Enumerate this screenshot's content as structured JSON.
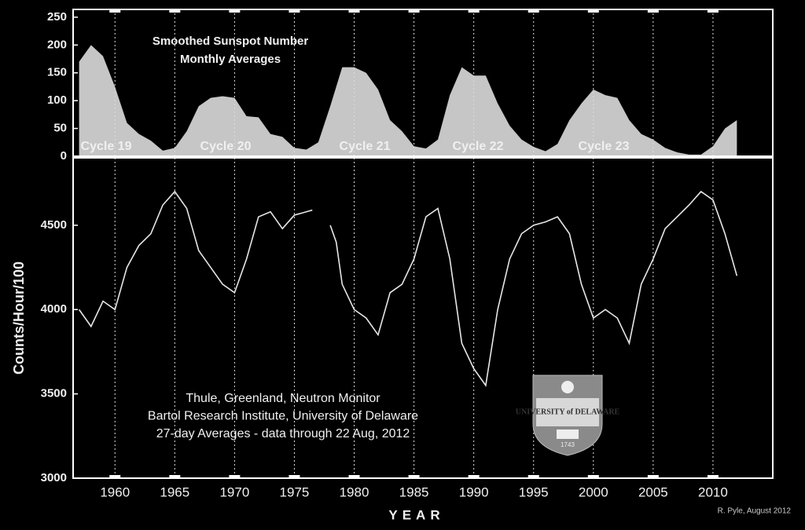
{
  "chart_data": [
    {
      "type": "area",
      "title": "Smoothed Sunspot Number",
      "subtitle": "Monthly Averages",
      "annotations": [
        "Cycle 19",
        "Cycle 20",
        "Cycle 21",
        "Cycle 22",
        "Cycle 23"
      ],
      "x": [
        1957,
        1958,
        1959,
        1960,
        1961,
        1962,
        1963,
        1964,
        1965,
        1966,
        1967,
        1968,
        1969,
        1970,
        1971,
        1972,
        1973,
        1974,
        1975,
        1976,
        1977,
        1978,
        1979,
        1980,
        1981,
        1982,
        1983,
        1984,
        1985,
        1986,
        1987,
        1988,
        1989,
        1990,
        1991,
        1992,
        1993,
        1994,
        1995,
        1996,
        1997,
        1998,
        1999,
        2000,
        2001,
        2002,
        2003,
        2004,
        2005,
        2006,
        2007,
        2008,
        2009,
        2010,
        2011,
        2012
      ],
      "values": [
        170,
        200,
        180,
        125,
        60,
        40,
        28,
        10,
        15,
        45,
        90,
        105,
        108,
        105,
        72,
        70,
        40,
        35,
        15,
        12,
        25,
        90,
        160,
        160,
        150,
        120,
        65,
        45,
        18,
        14,
        30,
        110,
        160,
        145,
        145,
        95,
        55,
        30,
        17,
        9,
        22,
        65,
        95,
        120,
        110,
        105,
        65,
        40,
        30,
        15,
        7,
        3,
        3,
        18,
        50,
        65
      ],
      "color": "#c6c6c6",
      "xlim": [
        1956.5,
        2015
      ],
      "ylim": [
        0,
        264
      ],
      "yticks": [
        0,
        50,
        100,
        150,
        200,
        250
      ],
      "grid": true
    },
    {
      "type": "line",
      "annotations": [
        "Thule, Greenland, Neutron Monitor",
        "Bartol Research Institute, University of Delaware",
        "27-day Averages - data through 22 Aug, 2012"
      ],
      "xlabel": "YEAR",
      "ylabel": "Counts/Hour/100",
      "x": [
        1957,
        1958,
        1959,
        1960,
        1961,
        1962,
        1963,
        1964,
        1965,
        1966,
        1967,
        1968,
        1969,
        1970,
        1971,
        1972,
        1973,
        1974,
        1975,
        1976,
        1976.5,
        1977,
        1978,
        1978.5,
        1979,
        1980,
        1981,
        1982,
        1983,
        1984,
        1985,
        1986,
        1987,
        1988,
        1989,
        1990,
        1991,
        1992,
        1993,
        1994,
        1995,
        1996,
        1997,
        1998,
        1999,
        2000,
        2001,
        2002,
        2003,
        2004,
        2005,
        2006,
        2007,
        2008,
        2009,
        2010,
        2011,
        2012
      ],
      "values": [
        4000,
        3900,
        4050,
        4000,
        4250,
        4380,
        4450,
        4620,
        4700,
        4600,
        4350,
        4250,
        4150,
        4100,
        4300,
        4550,
        4580,
        4480,
        4560,
        4580,
        4590,
        null,
        4500,
        4400,
        4150,
        4000,
        3950,
        3850,
        4100,
        4150,
        4300,
        4550,
        4600,
        4300,
        3800,
        3650,
        3550,
        4000,
        4300,
        4450,
        4500,
        4520,
        4550,
        4450,
        4150,
        3950,
        4000,
        3950,
        3800,
        4150,
        4300,
        4480,
        4550,
        4620,
        4700,
        4650,
        4450,
        4200
      ],
      "color": "#e6e6e6",
      "xlim": [
        1956.5,
        2015
      ],
      "xticks": [
        1960,
        1965,
        1970,
        1975,
        1980,
        1985,
        1990,
        1995,
        2000,
        2005,
        2010
      ],
      "ylim": [
        3000,
        4900
      ],
      "yticks": [
        3000,
        3500,
        4000,
        4500
      ],
      "grid": true
    }
  ],
  "credit": "R. Pyle, August 2012",
  "logo": {
    "name": "UNIVERSITY of DELAWARE",
    "year": "1743"
  }
}
